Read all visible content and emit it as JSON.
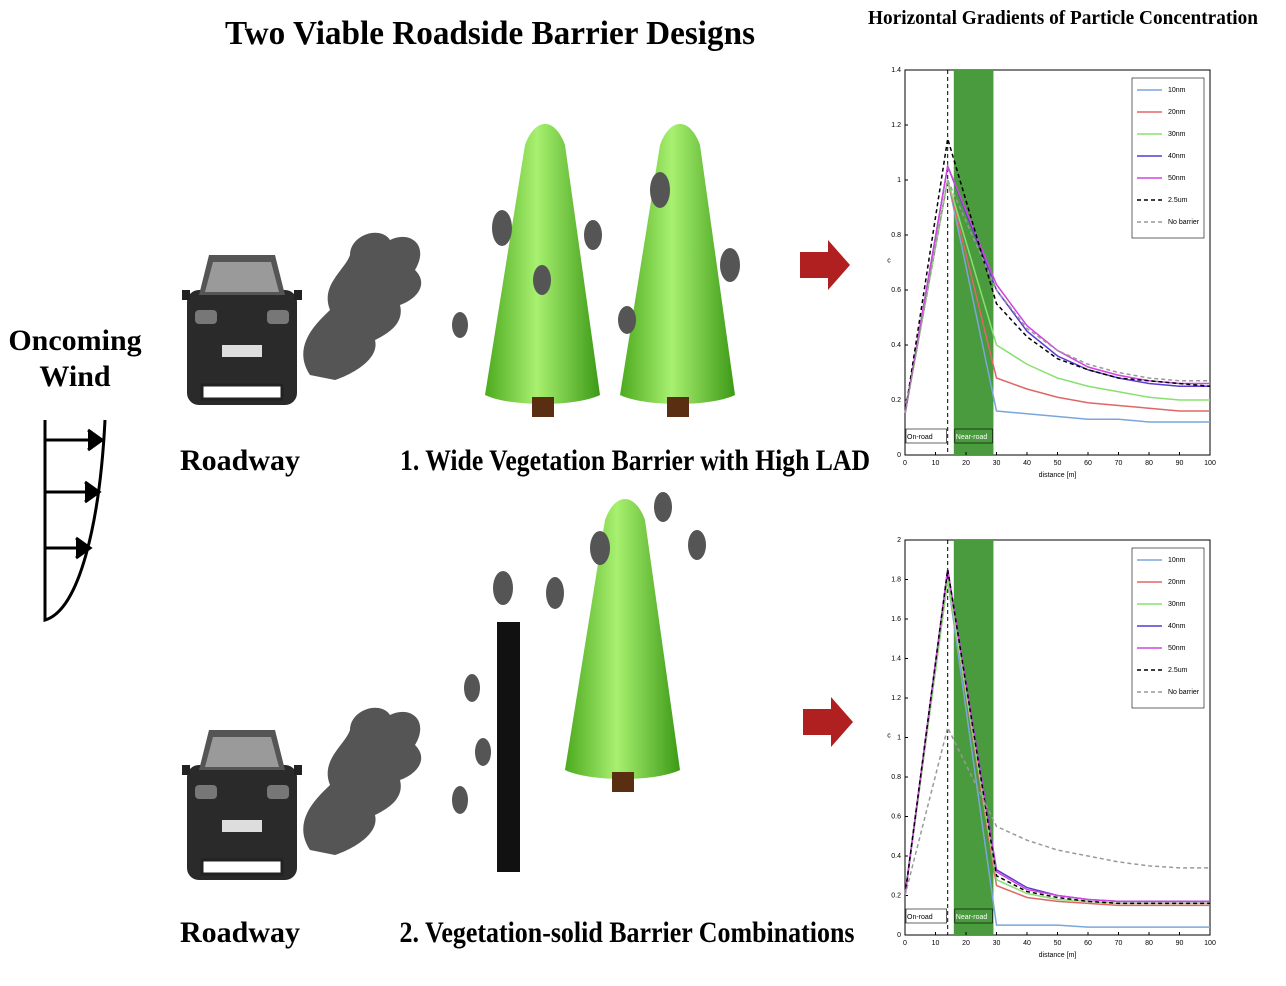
{
  "title": "Two Viable Roadside Barrier Designs",
  "chart_title": "Horizontal Gradients of Particle Concentration",
  "wind_label": "Oncoming Wind",
  "scenes": [
    {
      "road_label": "Roadway",
      "caption": "1. Wide Vegetation Barrier with High LAD"
    },
    {
      "road_label": "Roadway",
      "caption": "2. Vegetation-solid Barrier Combinations"
    }
  ],
  "chart_data": [
    {
      "type": "line",
      "xlabel": "distance [m]",
      "ylabel": "c",
      "xlim": [
        0,
        100
      ],
      "ylim": [
        0,
        1.4
      ],
      "xticks": [
        0,
        10,
        20,
        30,
        40,
        50,
        60,
        70,
        80,
        90,
        100
      ],
      "yticks": [
        0,
        0.2,
        0.4,
        0.6,
        0.8,
        1,
        1.2,
        1.4
      ],
      "annotations": [
        "On-road",
        "Near-road"
      ],
      "barrier": [
        16,
        29
      ],
      "road_edge": 14,
      "legend": "upper right",
      "x": [
        0,
        14,
        30,
        40,
        50,
        60,
        70,
        80,
        90,
        100
      ],
      "series": [
        {
          "name": "10nm",
          "color": "#7aa6dc",
          "dash": false,
          "values": [
            0.15,
            1.0,
            0.16,
            0.15,
            0.14,
            0.13,
            0.13,
            0.12,
            0.12,
            0.12
          ]
        },
        {
          "name": "20nm",
          "color": "#e06666",
          "dash": false,
          "values": [
            0.15,
            1.0,
            0.28,
            0.24,
            0.21,
            0.19,
            0.18,
            0.17,
            0.16,
            0.16
          ]
        },
        {
          "name": "30nm",
          "color": "#88e070",
          "dash": false,
          "values": [
            0.15,
            1.0,
            0.4,
            0.33,
            0.28,
            0.25,
            0.23,
            0.21,
            0.2,
            0.2
          ]
        },
        {
          "name": "40nm",
          "color": "#5a3ad0",
          "dash": false,
          "values": [
            0.15,
            1.05,
            0.6,
            0.45,
            0.36,
            0.31,
            0.28,
            0.26,
            0.25,
            0.25
          ]
        },
        {
          "name": "50nm",
          "color": "#d045e0",
          "dash": false,
          "values": [
            0.15,
            1.05,
            0.62,
            0.47,
            0.38,
            0.32,
            0.29,
            0.27,
            0.26,
            0.26
          ]
        },
        {
          "name": "2.5um",
          "color": "#000000",
          "dash": true,
          "values": [
            0.15,
            1.15,
            0.55,
            0.43,
            0.35,
            0.31,
            0.28,
            0.27,
            0.26,
            0.25
          ]
        },
        {
          "name": "No barrier",
          "color": "#999999",
          "dash": true,
          "values": [
            0.15,
            1.0,
            0.6,
            0.46,
            0.38,
            0.33,
            0.3,
            0.28,
            0.27,
            0.27
          ]
        }
      ]
    },
    {
      "type": "line",
      "xlabel": "distance [m]",
      "ylabel": "c",
      "xlim": [
        0,
        100
      ],
      "ylim": [
        0,
        2
      ],
      "xticks": [
        0,
        10,
        20,
        30,
        40,
        50,
        60,
        70,
        80,
        90,
        100
      ],
      "yticks": [
        0,
        0.2,
        0.4,
        0.6,
        0.8,
        1,
        1.2,
        1.4,
        1.6,
        1.8,
        2
      ],
      "annotations": [
        "On-road",
        "Near-road"
      ],
      "barrier": [
        16,
        29
      ],
      "road_edge": 14,
      "legend": "upper right",
      "x": [
        0,
        14,
        30,
        40,
        50,
        60,
        70,
        80,
        90,
        100
      ],
      "series": [
        {
          "name": "10nm",
          "color": "#7aa6dc",
          "dash": false,
          "values": [
            0.2,
            1.8,
            0.05,
            0.05,
            0.05,
            0.04,
            0.04,
            0.04,
            0.04,
            0.04
          ]
        },
        {
          "name": "20nm",
          "color": "#e06666",
          "dash": false,
          "values": [
            0.2,
            1.8,
            0.25,
            0.19,
            0.17,
            0.16,
            0.15,
            0.15,
            0.15,
            0.15
          ]
        },
        {
          "name": "30nm",
          "color": "#88e070",
          "dash": false,
          "values": [
            0.2,
            1.8,
            0.28,
            0.21,
            0.18,
            0.17,
            0.16,
            0.16,
            0.16,
            0.16
          ]
        },
        {
          "name": "40nm",
          "color": "#5a3ad0",
          "dash": false,
          "values": [
            0.2,
            1.85,
            0.33,
            0.24,
            0.2,
            0.18,
            0.17,
            0.17,
            0.17,
            0.17
          ]
        },
        {
          "name": "50nm",
          "color": "#d045e0",
          "dash": false,
          "values": [
            0.2,
            1.85,
            0.32,
            0.23,
            0.2,
            0.18,
            0.17,
            0.17,
            0.17,
            0.17
          ]
        },
        {
          "name": "2.5um",
          "color": "#000000",
          "dash": true,
          "values": [
            0.2,
            1.85,
            0.3,
            0.22,
            0.19,
            0.17,
            0.16,
            0.16,
            0.16,
            0.16
          ]
        },
        {
          "name": "No barrier",
          "color": "#999999",
          "dash": true,
          "values": [
            0.2,
            1.05,
            0.55,
            0.48,
            0.43,
            0.4,
            0.37,
            0.35,
            0.34,
            0.34
          ]
        }
      ]
    }
  ]
}
